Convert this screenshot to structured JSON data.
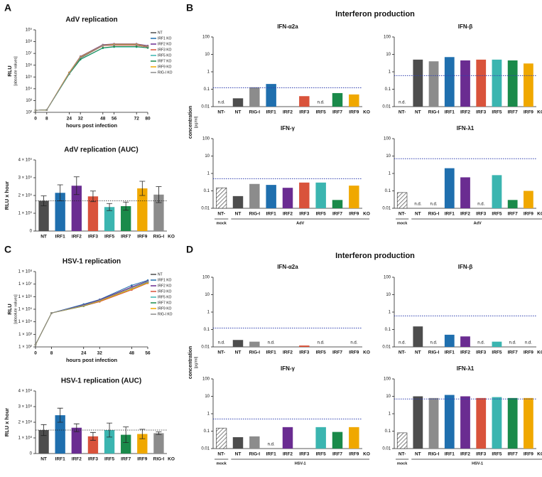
{
  "panels": [
    {
      "label": "A"
    },
    {
      "label": "B",
      "title": "Interferon production",
      "ylabel": "concentration",
      "yunit": "[pg/ml]"
    },
    {
      "label": "C"
    },
    {
      "label": "D",
      "title": "Interferon production",
      "ylabel": "concentration",
      "yunit": "[pg/ml]"
    }
  ],
  "chart_data": [
    {
      "type": "line",
      "title": "AdV replication",
      "ylabel": "RLU",
      "ylabel_sub": "[absolute values]",
      "xlabel": "hours post infection",
      "log_y": true,
      "xlim": [
        0,
        80
      ],
      "xticks": [
        0,
        8,
        24,
        32,
        48,
        56,
        72,
        80
      ],
      "ylim": [
        100,
        1000000000
      ],
      "yticks": [
        {
          "value": 100,
          "label": "10²"
        },
        {
          "value": 1000,
          "label": "10³"
        },
        {
          "value": 10000,
          "label": "10⁴"
        },
        {
          "value": 100000,
          "label": "10⁵"
        },
        {
          "value": 1000000,
          "label": "10⁶"
        },
        {
          "value": 10000000,
          "label": "10⁷"
        },
        {
          "value": 100000000,
          "label": "10⁸"
        },
        {
          "value": 1000000000,
          "label": "10⁹"
        }
      ],
      "x": [
        0,
        8,
        24,
        32,
        48,
        56,
        72,
        80
      ],
      "series": [
        {
          "name": "NT",
          "color": "#4d4d4d",
          "values": [
            150,
            160,
            200000,
            4000000,
            45000000,
            55000000,
            50000000,
            35000000
          ]
        },
        {
          "name": "IRF1 KO",
          "color": "#1f6fae",
          "values": [
            150,
            160,
            220000,
            5000000,
            50000000,
            60000000,
            60000000,
            40000000
          ]
        },
        {
          "name": "IRF2 KO",
          "color": "#6a2c91",
          "values": [
            150,
            160,
            240000,
            5500000,
            55000000,
            65000000,
            65000000,
            45000000
          ]
        },
        {
          "name": "IRF3 KO",
          "color": "#d9533b",
          "values": [
            150,
            160,
            200000,
            4500000,
            45000000,
            50000000,
            50000000,
            35000000
          ]
        },
        {
          "name": "IRF5 KO",
          "color": "#3bb5b0",
          "values": [
            150,
            160,
            180000,
            3000000,
            28000000,
            35000000,
            35000000,
            30000000
          ]
        },
        {
          "name": "IRF7 KO",
          "color": "#1a8a4a",
          "values": [
            150,
            160,
            180000,
            3200000,
            30000000,
            38000000,
            38000000,
            30000000
          ]
        },
        {
          "name": "IRF9 KO",
          "color": "#f0a800",
          "values": [
            150,
            160,
            230000,
            5000000,
            50000000,
            60000000,
            60000000,
            40000000
          ]
        },
        {
          "name": "RIG-I KO",
          "color": "#8c8c8c",
          "values": [
            150,
            160,
            200000,
            4500000,
            48000000,
            55000000,
            55000000,
            38000000
          ]
        }
      ]
    },
    {
      "type": "bar",
      "title": "AdV replication (AUC)",
      "ylabel": "RLU x hour",
      "ylim": [
        0,
        4000000000
      ],
      "yticks": [
        0,
        {
          "value": 1000000000,
          "label": "1 × 10⁹"
        },
        {
          "value": 2000000000,
          "label": "2 × 10⁹"
        },
        {
          "value": 3000000000,
          "label": "3 × 10⁹"
        },
        {
          "value": 4000000000,
          "label": "4 × 10⁹"
        }
      ],
      "categories": [
        "NT",
        "IRF1",
        "IRF2",
        "IRF3",
        "IRF5",
        "IRF7",
        "IRF9",
        "RIG-I"
      ],
      "category_suffix": "KO",
      "values": [
        1700000000,
        2150000000,
        2550000000,
        1950000000,
        1350000000,
        1400000000,
        2400000000,
        2050000000
      ],
      "errors": [
        280000000,
        450000000,
        500000000,
        300000000,
        200000000,
        230000000,
        400000000,
        450000000
      ],
      "colors": [
        "#4d4d4d",
        "#1f6fae",
        "#6a2c91",
        "#d9533b",
        "#3bb5b0",
        "#1a8a4a",
        "#f0a800",
        "#8c8c8c"
      ]
    },
    {
      "type": "logbar",
      "title": "IFN-α2a",
      "log_y": true,
      "ylim": [
        0.01,
        100
      ],
      "yticks": [
        0.01,
        0.1,
        1,
        10,
        100
      ],
      "threshold": 0.12,
      "categories": [
        "NT-",
        "NT",
        "RIG-I",
        "IRF1",
        "IRF2",
        "IRF3",
        "IRF5",
        "IRF7",
        "IRF9"
      ],
      "category_suffix": "KO",
      "values": [
        null,
        0.03,
        0.13,
        0.2,
        null,
        0.04,
        null,
        0.06,
        0.05
      ],
      "value_labels": [
        "n.d.",
        null,
        null,
        null,
        null,
        null,
        "n.d.",
        null,
        null
      ],
      "colors": [
        "hatch",
        "#4d4d4d",
        "#8c8c8c",
        "#1f6fae",
        "#6a2c91",
        "#d9533b",
        "#3bb5b0",
        "#1a8a4a",
        "#f0a800"
      ]
    },
    {
      "type": "logbar",
      "title": "IFN-β",
      "log_y": true,
      "ylim": [
        0.01,
        100
      ],
      "yticks": [
        0.01,
        0.1,
        1,
        10,
        100
      ],
      "threshold": 0.6,
      "categories": [
        "NT-",
        "NT",
        "RIG-I",
        "IRF1",
        "IRF2",
        "IRF3",
        "IRF5",
        "IRF7",
        "IRF9"
      ],
      "category_suffix": "KO",
      "values": [
        null,
        5,
        4,
        7,
        4.5,
        5,
        5,
        4.5,
        3
      ],
      "value_labels": [
        "n.d.",
        null,
        null,
        null,
        null,
        null,
        null,
        null,
        null
      ],
      "colors": [
        "hatch",
        "#4d4d4d",
        "#8c8c8c",
        "#1f6fae",
        "#6a2c91",
        "#d9533b",
        "#3bb5b0",
        "#1a8a4a",
        "#f0a800"
      ]
    },
    {
      "type": "logbar",
      "title": "IFN-γ",
      "log_y": true,
      "ylim": [
        0.01,
        100
      ],
      "yticks": [
        0.01,
        0.1,
        1,
        10,
        100
      ],
      "threshold": 0.5,
      "categories": [
        "NT-",
        "NT",
        "RIG-I",
        "IRF1",
        "IRF2",
        "IRF3",
        "IRF5",
        "IRF7",
        "IRF9"
      ],
      "category_suffix": "KO",
      "groups": [
        "mock",
        "AdV"
      ],
      "values": [
        0.15,
        0.05,
        0.25,
        0.22,
        0.15,
        0.3,
        0.3,
        0.03,
        0.2
      ],
      "colors": [
        "hatch",
        "#4d4d4d",
        "#8c8c8c",
        "#1f6fae",
        "#6a2c91",
        "#d9533b",
        "#3bb5b0",
        "#1a8a4a",
        "#f0a800"
      ]
    },
    {
      "type": "logbar",
      "title": "IFN-λ1",
      "log_y": true,
      "ylim": [
        0.01,
        100
      ],
      "yticks": [
        0.01,
        0.1,
        1,
        10,
        100
      ],
      "threshold": 7,
      "categories": [
        "NT-",
        "NT",
        "RIG-I",
        "IRF1",
        "IRF2",
        "IRF3",
        "IRF5",
        "IRF7",
        "IRF9"
      ],
      "category_suffix": "KO",
      "groups": [
        "mock",
        "AdV"
      ],
      "values": [
        0.08,
        null,
        null,
        2,
        0.6,
        null,
        0.8,
        0.03,
        0.1
      ],
      "value_labels": [
        null,
        "n.d.",
        "n.d.",
        null,
        null,
        "n.d.",
        null,
        null,
        null
      ],
      "colors": [
        "hatch",
        "#4d4d4d",
        "#8c8c8c",
        "#1f6fae",
        "#6a2c91",
        "#d9533b",
        "#3bb5b0",
        "#1a8a4a",
        "#f0a800"
      ]
    },
    {
      "type": "line",
      "title": "HSV-1 replication",
      "ylabel": "RLU",
      "ylabel_sub": "[absolute values]",
      "xlabel": "hours post infection",
      "log_y": true,
      "xlim": [
        0,
        56
      ],
      "xticks": [
        0,
        8,
        24,
        32,
        48,
        56
      ],
      "ylim": [
        100,
        100000000
      ],
      "yticks": [
        {
          "value": 100,
          "label": "1 × 10²"
        },
        {
          "value": 1000,
          "label": "1 × 10³"
        },
        {
          "value": 10000,
          "label": "1 × 10⁴"
        },
        {
          "value": 100000,
          "label": "1 × 10⁵"
        },
        {
          "value": 1000000,
          "label": "1 × 10⁶"
        },
        {
          "value": 10000000,
          "label": "1 × 10⁷"
        },
        {
          "value": 100000000,
          "label": "1 × 10⁸"
        }
      ],
      "x": [
        0,
        8,
        24,
        32,
        48,
        56
      ],
      "series": [
        {
          "name": "NT",
          "color": "#4d4d4d",
          "values": [
            150,
            50000,
            200000,
            500000,
            5000000,
            15000000
          ]
        },
        {
          "name": "IRF1 KO",
          "color": "#1f6fae",
          "values": [
            150,
            50000,
            250000,
            600000,
            8000000,
            20000000
          ]
        },
        {
          "name": "IRF2 KO",
          "color": "#6a2c91",
          "values": [
            150,
            50000,
            220000,
            550000,
            6000000,
            18000000
          ]
        },
        {
          "name": "IRF3 KO",
          "color": "#d9533b",
          "values": [
            150,
            50000,
            180000,
            400000,
            3500000,
            12000000
          ]
        },
        {
          "name": "IRF5 KO",
          "color": "#3bb5b0",
          "values": [
            150,
            50000,
            200000,
            500000,
            5000000,
            16000000
          ]
        },
        {
          "name": "IRF7 KO",
          "color": "#1a8a4a",
          "values": [
            150,
            50000,
            180000,
            450000,
            4000000,
            13000000
          ]
        },
        {
          "name": "IRF9 KO",
          "color": "#f0a800",
          "values": [
            150,
            50000,
            190000,
            450000,
            4000000,
            13000000
          ]
        },
        {
          "name": "RIG-I KO",
          "color": "#8c8c8c",
          "values": [
            150,
            50000,
            200000,
            500000,
            5000000,
            15000000
          ]
        }
      ]
    },
    {
      "type": "bar",
      "title": "HSV-1 replication (AUC)",
      "ylabel": "RLU x hour",
      "ylim": [
        0,
        400000000
      ],
      "yticks": [
        0,
        {
          "value": 100000000,
          "label": "1 × 10⁸"
        },
        {
          "value": 200000000,
          "label": "2 × 10⁸"
        },
        {
          "value": 300000000,
          "label": "3 × 10⁸"
        },
        {
          "value": 400000000,
          "label": "4 × 10⁸"
        }
      ],
      "categories": [
        "NT",
        "IRF1",
        "IRF2",
        "IRF3",
        "IRF5",
        "IRF7",
        "IRF9",
        "RIG-I"
      ],
      "category_suffix": "KO",
      "values": [
        150000000,
        245000000,
        165000000,
        110000000,
        150000000,
        120000000,
        125000000,
        130000000
      ],
      "errors": [
        35000000,
        45000000,
        25000000,
        25000000,
        45000000,
        50000000,
        30000000,
        8000000
      ],
      "colors": [
        "#4d4d4d",
        "#1f6fae",
        "#6a2c91",
        "#d9533b",
        "#3bb5b0",
        "#1a8a4a",
        "#f0a800",
        "#8c8c8c"
      ]
    },
    {
      "type": "logbar",
      "title": "IFN-α2a",
      "log_y": true,
      "ylim": [
        0.01,
        100
      ],
      "yticks": [
        0.01,
        0.1,
        1,
        10,
        100
      ],
      "threshold": 0.12,
      "categories": [
        "NT-",
        "NT",
        "RIG-I",
        "IRF1",
        "IRF2",
        "IRF3",
        "IRF5",
        "IRF7",
        "IRF9"
      ],
      "category_suffix": "KO",
      "values": [
        null,
        0.025,
        0.02,
        null,
        null,
        0.012,
        null,
        null,
        null
      ],
      "value_labels": [
        "n.d.",
        null,
        null,
        "n.d.",
        null,
        null,
        "n.d.",
        null,
        "n.d."
      ],
      "colors": [
        "hatch",
        "#4d4d4d",
        "#8c8c8c",
        "#1f6fae",
        "#6a2c91",
        "#d9533b",
        "#3bb5b0",
        "#1a8a4a",
        "#f0a800"
      ]
    },
    {
      "type": "logbar",
      "title": "IFN-β",
      "log_y": true,
      "ylim": [
        0.01,
        100
      ],
      "yticks": [
        0.01,
        0.1,
        1,
        10,
        100
      ],
      "threshold": 0.6,
      "categories": [
        "NT-",
        "NT",
        "RIG-I",
        "IRF1",
        "IRF2",
        "IRF3",
        "IRF5",
        "IRF7",
        "IRF9"
      ],
      "category_suffix": "KO",
      "values": [
        null,
        0.15,
        null,
        0.05,
        0.04,
        null,
        0.02,
        null,
        null
      ],
      "value_labels": [
        "n.d.",
        null,
        "n.d.",
        null,
        null,
        "n.d.",
        null,
        "n.d.",
        "n.d."
      ],
      "colors": [
        "hatch",
        "#4d4d4d",
        "#8c8c8c",
        "#1f6fae",
        "#6a2c91",
        "#d9533b",
        "#3bb5b0",
        "#1a8a4a",
        "#f0a800"
      ]
    },
    {
      "type": "logbar",
      "title": "IFN-γ",
      "log_y": true,
      "ylim": [
        0.01,
        100
      ],
      "yticks": [
        0.01,
        0.1,
        1,
        10,
        100
      ],
      "threshold": 0.5,
      "categories": [
        "NT-",
        "NT",
        "RIG-I",
        "IRF1",
        "IRF2",
        "IRF3",
        "IRF5",
        "IRF7",
        "IRF9"
      ],
      "category_suffix": "KO",
      "groups": [
        "mock",
        "HSV-1"
      ],
      "values": [
        0.15,
        0.045,
        0.05,
        null,
        0.17,
        null,
        0.17,
        0.09,
        0.17
      ],
      "value_labels": [
        null,
        null,
        null,
        "n.d.",
        null,
        null,
        null,
        null,
        null
      ],
      "colors": [
        "hatch",
        "#4d4d4d",
        "#8c8c8c",
        "#1f6fae",
        "#6a2c91",
        "#d9533b",
        "#3bb5b0",
        "#1a8a4a",
        "#f0a800"
      ]
    },
    {
      "type": "logbar",
      "title": "IFN-λ1",
      "log_y": true,
      "ylim": [
        0.01,
        100
      ],
      "yticks": [
        0.01,
        0.1,
        1,
        10,
        100
      ],
      "threshold": 7,
      "categories": [
        "NT-",
        "NT",
        "RIG-I",
        "IRF1",
        "IRF2",
        "IRF3",
        "IRF5",
        "IRF7",
        "IRF9"
      ],
      "category_suffix": "KO",
      "groups": [
        "mock",
        "HSV-1"
      ],
      "values": [
        0.08,
        10,
        8,
        12,
        10,
        8,
        9,
        8,
        8
      ],
      "colors": [
        "hatch",
        "#4d4d4d",
        "#8c8c8c",
        "#1f6fae",
        "#6a2c91",
        "#d9533b",
        "#3bb5b0",
        "#1a8a4a",
        "#f0a800"
      ]
    }
  ]
}
